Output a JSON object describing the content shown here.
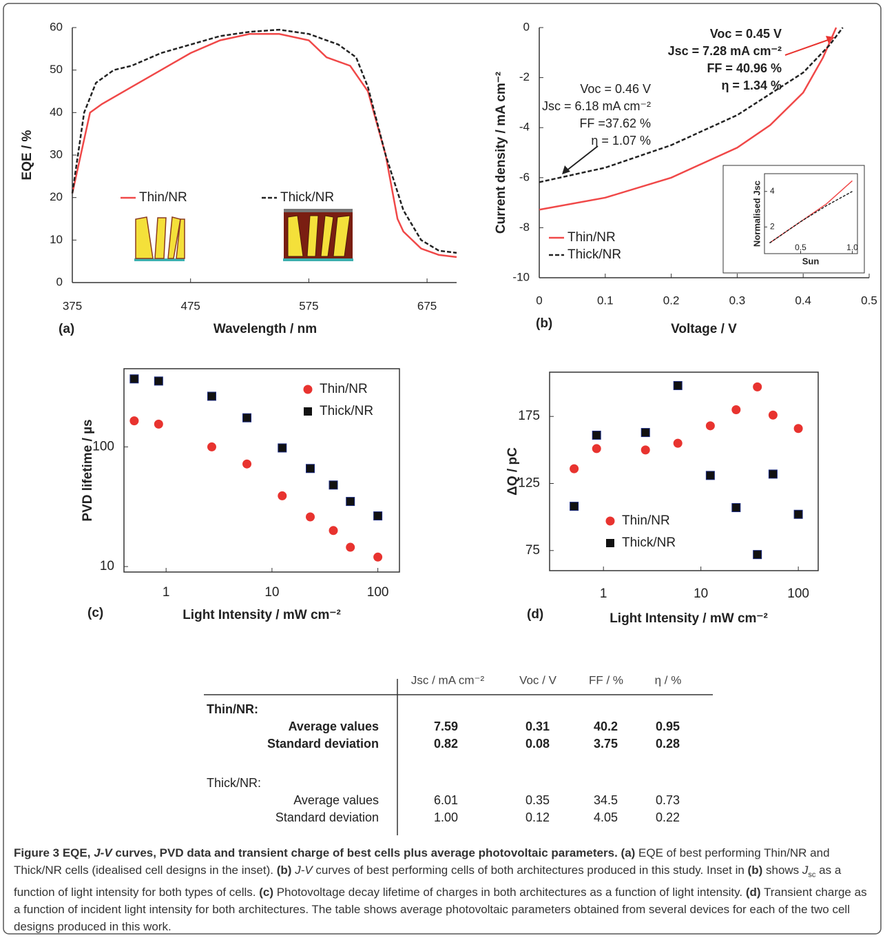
{
  "chart_data": [
    {
      "type": "line",
      "panel_label": "(a)",
      "xlabel": "Wavelength / nm",
      "ylabel": "EQE / %",
      "xlim": [
        375,
        700
      ],
      "ylim": [
        0,
        60
      ],
      "xticks": [
        375,
        475,
        575,
        675
      ],
      "yticks": [
        0,
        10,
        20,
        30,
        40,
        50,
        60
      ],
      "legend": "center",
      "series": [
        {
          "name": "Thin/NR",
          "color": "#f04848",
          "line_style": "solid",
          "x": [
            375,
            390,
            400,
            425,
            450,
            475,
            500,
            525,
            550,
            575,
            590,
            610,
            625,
            640,
            650,
            655,
            670,
            685,
            700
          ],
          "values": [
            21,
            40,
            42,
            46,
            50,
            54,
            57,
            58.5,
            58.5,
            57,
            53,
            51,
            45,
            30,
            15,
            12,
            8,
            6.5,
            6
          ]
        },
        {
          "name": "Thick/NR",
          "color": "#222222",
          "line_style": "dashed",
          "x": [
            375,
            385,
            395,
            410,
            425,
            450,
            475,
            500,
            525,
            550,
            575,
            600,
            615,
            625,
            640,
            655,
            670,
            685,
            700
          ],
          "values": [
            21,
            40,
            47,
            50,
            51,
            54,
            56,
            58,
            59,
            59.5,
            58.5,
            56,
            53,
            46,
            30,
            17,
            10,
            7.5,
            7
          ]
        }
      ]
    },
    {
      "type": "line",
      "panel_label": "(b)",
      "xlabel": "Voltage / V",
      "ylabel": "Current density / mA cm⁻²",
      "xlim": [
        0,
        0.5
      ],
      "ylim": [
        -10,
        0
      ],
      "xticks": [
        0,
        0.1,
        0.2,
        0.3,
        0.4,
        0.5
      ],
      "yticks": [
        -10,
        -8,
        -6,
        -4,
        -2,
        0
      ],
      "legend": "lower left",
      "series": [
        {
          "name": "Thin/NR",
          "color": "#f04848",
          "line_style": "solid",
          "x": [
            0,
            0.1,
            0.2,
            0.3,
            0.35,
            0.4,
            0.43,
            0.45
          ],
          "values": [
            -7.28,
            -6.8,
            -6,
            -4.8,
            -3.9,
            -2.6,
            -1.2,
            0
          ]
        },
        {
          "name": "Thick/NR",
          "color": "#222222",
          "line_style": "dashed",
          "x": [
            0,
            0.1,
            0.2,
            0.3,
            0.4,
            0.44,
            0.46
          ],
          "values": [
            -6.18,
            -5.6,
            -4.7,
            -3.5,
            -1.8,
            -0.7,
            0
          ]
        }
      ],
      "annotations": [
        {
          "color": "#e8332f",
          "lines": [
            "Voc = 0.45 V",
            "Jsc = 7.28 mA cm⁻²",
            "FF = 40.96 %",
            "η = 1.34 %"
          ]
        },
        {
          "color": "#333333",
          "lines": [
            "Voc = 0.46 V",
            "Jsc = 6.18 mA cm⁻²",
            "FF =37.62 %",
            "η = 1.07 %"
          ]
        }
      ]
    },
    {
      "type": "scatter",
      "panel_label": "(c)",
      "xlabel": "Light Intensity  / mW cm⁻²",
      "ylabel": "PVD lifetime / µs",
      "x_scale": "log",
      "y_scale": "log",
      "xlim": [
        0.4,
        160
      ],
      "ylim": [
        9,
        450
      ],
      "xticks": [
        1,
        10,
        100
      ],
      "yticks": [
        10,
        100
      ],
      "legend": "upper right",
      "series": [
        {
          "name": "Thin/NR",
          "color": "#e8332f",
          "marker": "circle",
          "x": [
            0.5,
            0.85,
            2.7,
            5.8,
            12.5,
            23,
            38,
            55,
            100
          ],
          "values": [
            165,
            155,
            100,
            72,
            39,
            26,
            20,
            14.5,
            12
          ]
        },
        {
          "name": "Thick/NR",
          "color": "#111111",
          "marker": "square",
          "x": [
            0.5,
            0.85,
            2.7,
            5.8,
            12.5,
            23,
            38,
            55,
            100
          ],
          "values": [
            370,
            355,
            265,
            175,
            98,
            66,
            48,
            35,
            26.5
          ]
        }
      ]
    },
    {
      "type": "scatter",
      "panel_label": "(d)",
      "xlabel": "Light Intensity  / mW cm⁻²",
      "ylabel": "ΔQ / pC",
      "x_scale": "log",
      "xlim": [
        0.28,
        160
      ],
      "ylim": [
        60,
        208
      ],
      "xticks": [
        1,
        10,
        100
      ],
      "yticks": [
        75,
        125,
        175
      ],
      "legend": "center left",
      "series": [
        {
          "name": "Thin/NR",
          "color": "#e8332f",
          "marker": "circle",
          "x": [
            0.5,
            0.85,
            2.7,
            5.8,
            12.5,
            23,
            38,
            55,
            100
          ],
          "values": [
            136,
            151,
            150,
            155,
            168,
            180,
            197,
            176,
            166
          ]
        },
        {
          "name": "Thick/NR",
          "color": "#111111",
          "marker": "square",
          "x": [
            0.5,
            0.85,
            2.7,
            5.8,
            12.5,
            23,
            38,
            55,
            100
          ],
          "values": [
            108,
            161,
            163,
            198,
            131,
            107,
            72,
            132,
            102
          ]
        }
      ]
    },
    {
      "type": "line",
      "xlabel": "Sun",
      "ylabel": "Normalised Jsc",
      "xlim": [
        0.15,
        1.05
      ],
      "ylim": [
        0.5,
        5
      ],
      "xticks": [
        0.5,
        {
          "value": 1,
          "label": "1.0"
        }
      ],
      "yticks": [
        2,
        4
      ],
      "series": [
        {
          "color": "#f04848",
          "line_style": "solid",
          "x": [
            0.2,
            0.5,
            0.75,
            1
          ],
          "values": [
            1.1,
            2.3,
            3.3,
            4.6
          ]
        },
        {
          "color": "#222222",
          "line_style": "dashed",
          "x": [
            0.2,
            0.5,
            0.75,
            1
          ],
          "values": [
            1.1,
            2.3,
            3.2,
            4
          ]
        }
      ]
    }
  ],
  "table": {
    "columns": [
      "Jsc / mA cm⁻²",
      "Voc / V",
      "FF / %",
      "η / %"
    ],
    "groups": [
      {
        "name": "Thin/NR:",
        "rows": [
          {
            "label": "Average values",
            "values": [
              "7.59",
              "0.31",
              "40.2",
              "0.95"
            ]
          },
          {
            "label": "Standard deviation",
            "values": [
              "0.82",
              "0.08",
              "3.75",
              "0.28"
            ]
          }
        ]
      },
      {
        "name": "Thick/NR:",
        "rows": [
          {
            "label": "Average values",
            "values": [
              "6.01",
              "0.35",
              "34.5",
              "0.73"
            ]
          },
          {
            "label": "Standard deviation",
            "values": [
              "1.00",
              "0.12",
              "4.05",
              "0.22"
            ]
          }
        ]
      }
    ]
  },
  "caption": {
    "runs": [
      "Figure 3 EQE,",
      "J-V",
      "curves, PVD data and transient charge of best cells plus average photovoltaic parameters.",
      "(a)",
      "EQE of best performing Thin/NR and Thick/NR cells (idealised cell designs in the inset).",
      "(b)",
      "J-V",
      "curves of best performing cells of both architectures produced in this study. Inset in",
      "(b)",
      "shows",
      "J",
      "sc",
      "as a function of light intensity for both types of cells.",
      "(c)",
      "Photovoltage decay lifetime of charges in both architectures as a function of light intensity.",
      "(d)",
      "Transient charge as a function of incident light intensity for both architectures. The table shows average photovoltaic parameters obtained from several devices for each of the two cell designs produced in this work."
    ]
  }
}
